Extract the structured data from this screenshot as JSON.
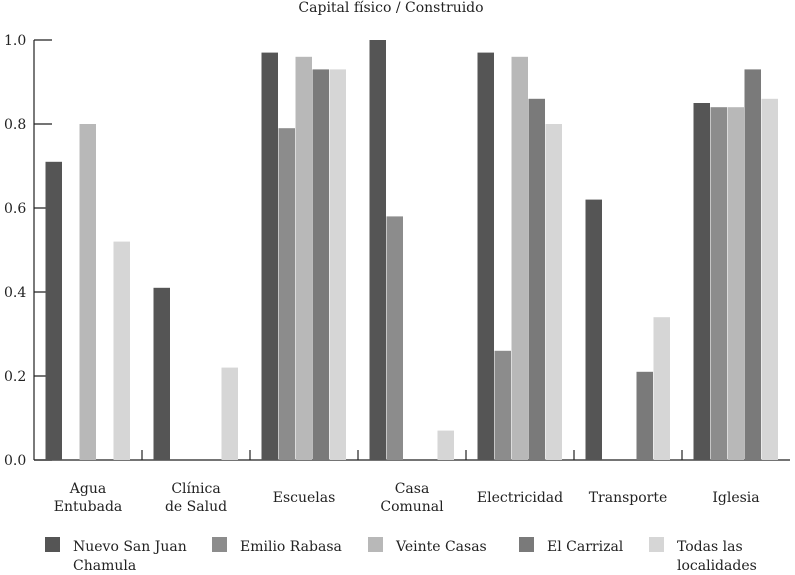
{
  "chart_data": {
    "type": "bar",
    "title": "Capital físico / Construido",
    "xlabel": "",
    "ylabel": "",
    "ylim": [
      0,
      1.0
    ],
    "yticks": [
      "0.0",
      "0.2",
      "0.4",
      "0.6",
      "0.8",
      "1.0"
    ],
    "grid": false,
    "legend_position": "bottom",
    "categories": [
      [
        "Agua",
        "Entubada"
      ],
      [
        "Clínica",
        "de Salud"
      ],
      [
        "Escuelas"
      ],
      [
        "Casa",
        "Comunal"
      ],
      [
        "Electricidad"
      ],
      [
        "Transporte"
      ],
      [
        "Iglesia"
      ]
    ],
    "series": [
      {
        "name": [
          "Nuevo San Juan",
          "Chamula"
        ],
        "color": "#555555",
        "values": [
          0.71,
          0.41,
          0.97,
          1.0,
          0.97,
          0.62,
          0.85
        ]
      },
      {
        "name": [
          "Emilio Rabasa"
        ],
        "color": "#8c8c8c",
        "values": [
          0,
          0,
          0.79,
          0.58,
          0.26,
          0,
          0.84
        ]
      },
      {
        "name": [
          "Veinte Casas"
        ],
        "color": "#b8b8b8",
        "values": [
          0.8,
          0,
          0.96,
          0,
          0.96,
          0,
          0.84
        ]
      },
      {
        "name": [
          "El Carrizal"
        ],
        "color": "#7a7a7a",
        "values": [
          0,
          0,
          0.93,
          0,
          0.86,
          0.21,
          0.93
        ]
      },
      {
        "name": [
          "Todas las",
          "localidades"
        ],
        "color": "#d6d6d6",
        "values": [
          0.52,
          0.22,
          0.93,
          0.07,
          0.8,
          0.34,
          0.86
        ]
      }
    ]
  }
}
